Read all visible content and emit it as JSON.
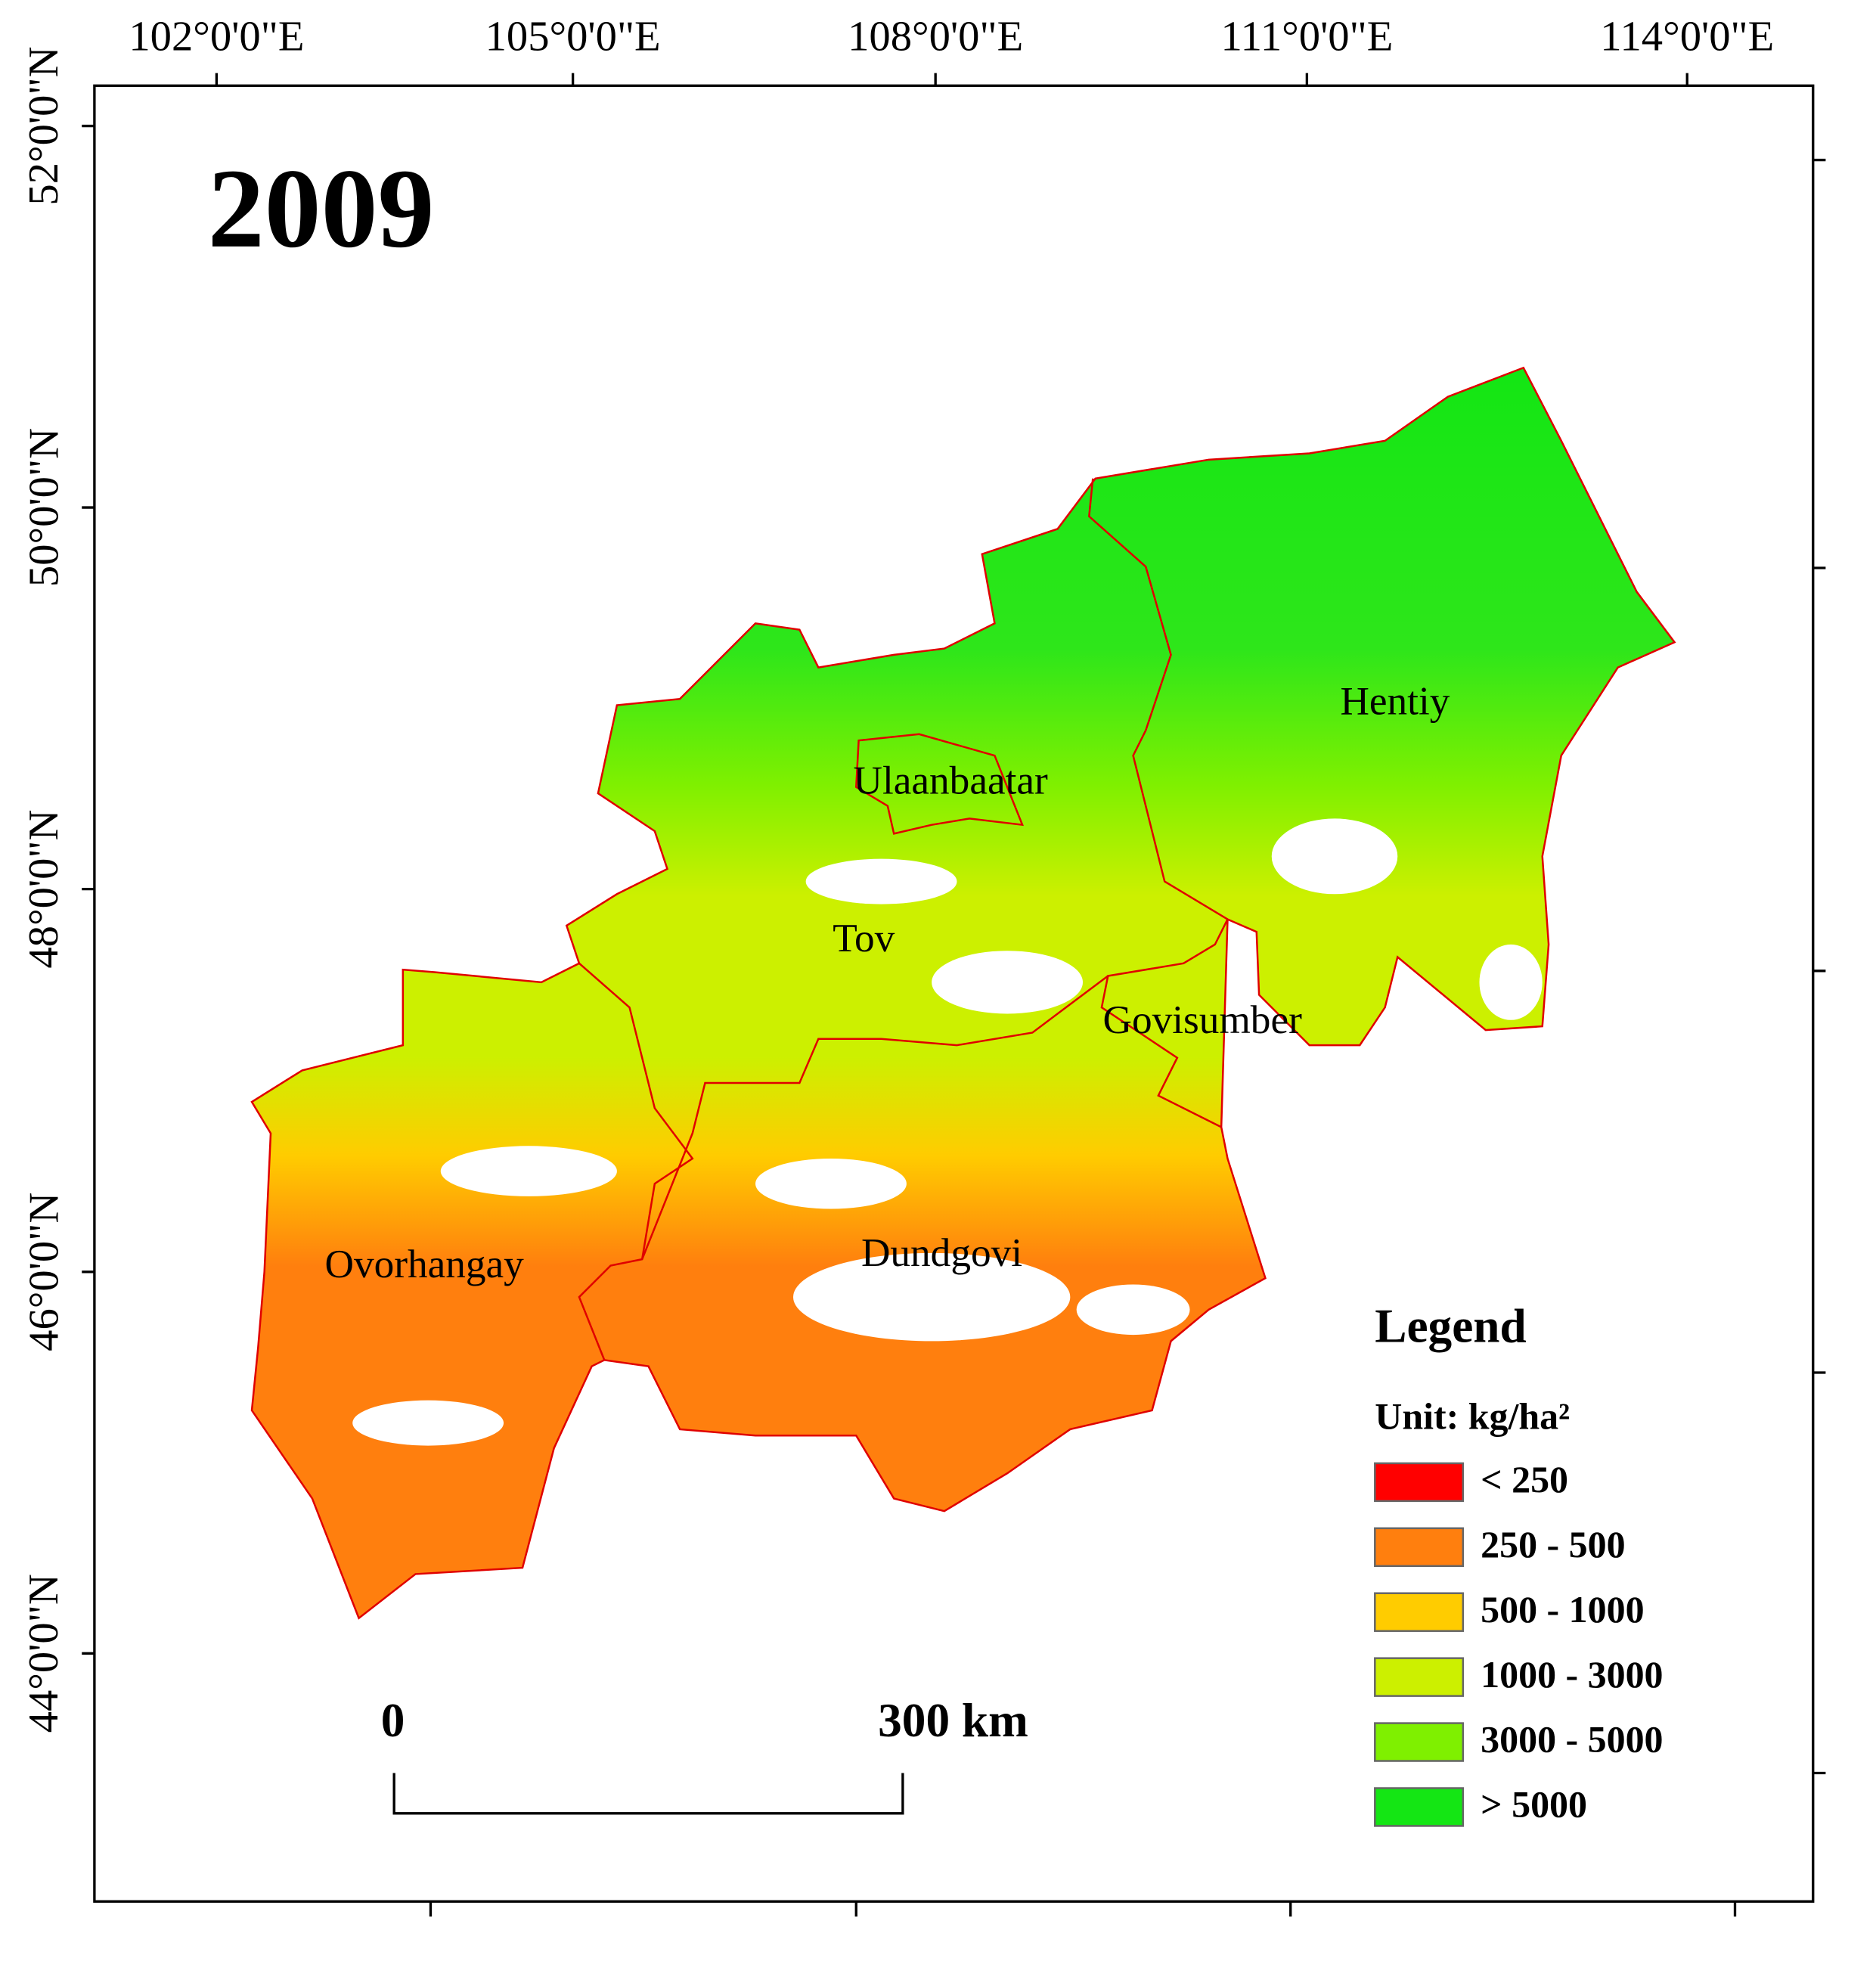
{
  "title": "2009",
  "longitude_labels": [
    "102°0'0\"E",
    "105°0'0\"E",
    "108°0'0\"E",
    "111°0'0\"E",
    "114°0'0\"E"
  ],
  "latitude_labels": [
    "52°0'0\"N",
    "50°0'0\"N",
    "48°0'0\"N",
    "46°0'0\"N",
    "44°0'0\"N"
  ],
  "regions": [
    "Hentiy",
    "Ulaanbaatar",
    "Tov",
    "Govisumber",
    "Ovorhangay",
    "Dundgovi"
  ],
  "legend": {
    "title": "Legend",
    "unit": "Unit: kg/ha²",
    "items": [
      {
        "label": "< 250",
        "color": "#ff0000"
      },
      {
        "label": "250 - 500",
        "color": "#ff7f0e"
      },
      {
        "label": "500 - 1000",
        "color": "#ffcc00"
      },
      {
        "label": "1000 - 3000",
        "color": "#ccf000"
      },
      {
        "label": "3000 - 5000",
        "color": "#7ff000"
      },
      {
        "label": "> 5000",
        "color": "#14e614"
      }
    ]
  },
  "scale_bar": {
    "start_label": "0",
    "end_label": "300 km"
  }
}
